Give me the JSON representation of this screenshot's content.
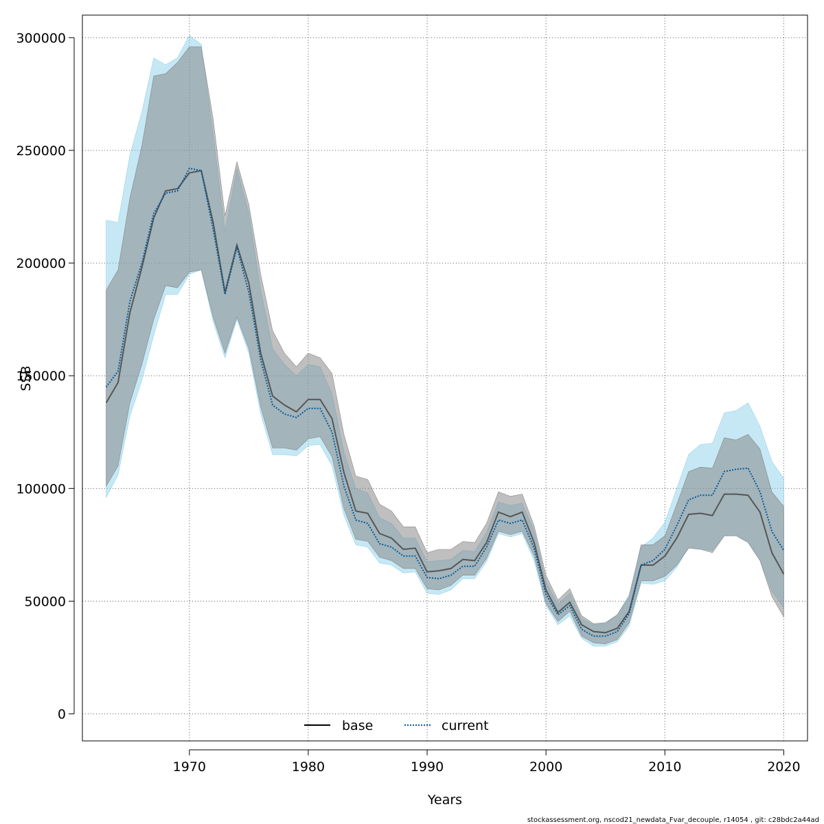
{
  "chart_data": {
    "type": "line",
    "xlabel": "Years",
    "ylabel": "SSB",
    "xlim": [
      1961,
      2022
    ],
    "ylim": [
      -12000,
      310000
    ],
    "x_ticks": [
      1970,
      1980,
      1990,
      2000,
      2010,
      2020
    ],
    "y_ticks": [
      0,
      50000,
      100000,
      150000,
      200000,
      250000,
      300000
    ],
    "x_tick_labels": [
      "1970",
      "1980",
      "1990",
      "2000",
      "2010",
      "2020"
    ],
    "y_tick_labels": [
      "0",
      "50000",
      "100000",
      "150000",
      "200000",
      "250000",
      "300000"
    ],
    "grid": true,
    "legend_position": "bottom-center",
    "footer": "stockassessment.org, nscod21_newdata_Fvar_decouple, r14054 , git: c28bdc2a44ad",
    "x": [
      1963,
      1964,
      1965,
      1966,
      1967,
      1968,
      1969,
      1970,
      1971,
      1972,
      1973,
      1974,
      1975,
      1976,
      1977,
      1978,
      1979,
      1980,
      1981,
      1982,
      1983,
      1984,
      1985,
      1986,
      1987,
      1988,
      1989,
      1990,
      1991,
      1992,
      1993,
      1994,
      1995,
      1996,
      1997,
      1998,
      1999,
      2000,
      2001,
      2002,
      2003,
      2004,
      2005,
      2006,
      2007,
      2008,
      2009,
      2010,
      2011,
      2012,
      2013,
      2014,
      2015,
      2016,
      2017,
      2018,
      2019,
      2020
    ],
    "series": [
      {
        "name": "base",
        "color": "#000000",
        "band_color": "#808080",
        "values": [
          138000,
          147000,
          178000,
          198000,
          220000,
          232000,
          233000,
          240000,
          241000,
          218000,
          187000,
          208000,
          191000,
          160000,
          141000,
          137000,
          134000,
          139500,
          139500,
          131000,
          107000,
          90000,
          89000,
          80000,
          78000,
          73000,
          73500,
          63000,
          63500,
          64500,
          68500,
          68000,
          76000,
          89500,
          87500,
          89500,
          76000,
          55000,
          45000,
          49500,
          39500,
          36500,
          36000,
          38000,
          45500,
          66000,
          66000,
          70000,
          78000,
          88500,
          89000,
          88000,
          97500,
          97500,
          97000,
          89500,
          71500,
          62000
        ],
        "lower": [
          101000,
          110000,
          138000,
          155000,
          175000,
          190000,
          189000,
          196000,
          197000,
          176000,
          160000,
          176000,
          162000,
          136000,
          118000,
          118000,
          117000,
          122000,
          123000,
          114000,
          91000,
          77500,
          76500,
          69500,
          68000,
          64500,
          64500,
          55500,
          55000,
          57000,
          61500,
          61500,
          69000,
          81000,
          79500,
          81000,
          70000,
          49000,
          41000,
          45500,
          34500,
          31500,
          31000,
          33000,
          40500,
          59000,
          59000,
          61000,
          66000,
          73500,
          73000,
          71500,
          79000,
          79000,
          76000,
          68000,
          52000,
          43000
        ],
        "upper": [
          188000,
          197000,
          229000,
          252000,
          283000,
          284000,
          289000,
          296000,
          296000,
          264000,
          221000,
          245000,
          226000,
          195000,
          170000,
          160000,
          154000,
          160000,
          158000,
          151000,
          124000,
          105500,
          104000,
          93000,
          90000,
          83000,
          83000,
          71500,
          73000,
          73000,
          76500,
          76000,
          84500,
          98500,
          96500,
          97500,
          83500,
          61500,
          50500,
          55500,
          43500,
          40000,
          40500,
          44000,
          52000,
          75000,
          75000,
          79000,
          93000,
          107500,
          109500,
          109000,
          122500,
          121500,
          124000,
          117500,
          98500,
          92000
        ]
      },
      {
        "name": "current",
        "color": "#005a9c",
        "band_color": "#87ceeb",
        "values": [
          145000,
          152000,
          183000,
          200000,
          222000,
          231000,
          232000,
          242000,
          241000,
          215000,
          186000,
          207000,
          187000,
          157000,
          137000,
          133000,
          131500,
          135500,
          135500,
          125000,
          101000,
          86000,
          84500,
          75500,
          74000,
          70000,
          70000,
          60500,
          60000,
          61500,
          65500,
          65500,
          74000,
          86000,
          84500,
          86000,
          73500,
          53000,
          44000,
          48000,
          37500,
          34500,
          34500,
          36500,
          44500,
          66000,
          68000,
          73000,
          83500,
          95000,
          97000,
          97000,
          107500,
          108500,
          109000,
          98500,
          81000,
          72500
        ],
        "lower": [
          96000,
          106000,
          132000,
          148000,
          168000,
          186000,
          186000,
          195000,
          197000,
          174000,
          158000,
          175000,
          160000,
          133000,
          115000,
          115000,
          114500,
          119000,
          119500,
          110000,
          88000,
          75000,
          74000,
          67000,
          66000,
          62500,
          63000,
          53500,
          53000,
          55000,
          60000,
          60000,
          67500,
          80000,
          78500,
          80000,
          68000,
          48000,
          39500,
          43500,
          33500,
          30000,
          30000,
          32000,
          39000,
          58000,
          57500,
          59000,
          65000,
          74000,
          73000,
          72500,
          79000,
          79000,
          76500,
          68000,
          54500,
          47000
        ],
        "upper": [
          219000,
          218000,
          248000,
          267000,
          291000,
          288000,
          291000,
          301000,
          297000,
          257000,
          214000,
          242000,
          222000,
          188000,
          162000,
          155000,
          150000,
          155000,
          154000,
          142000,
          116000,
          100000,
          98000,
          87000,
          84500,
          78000,
          78000,
          67500,
          68000,
          68500,
          72500,
          72000,
          80500,
          94000,
          92500,
          93500,
          81000,
          58500,
          48500,
          53500,
          42000,
          39500,
          40000,
          44000,
          53000,
          74000,
          78000,
          85000,
          100000,
          115000,
          119500,
          120000,
          133500,
          134500,
          138000,
          127500,
          112000,
          104500
        ]
      }
    ]
  }
}
